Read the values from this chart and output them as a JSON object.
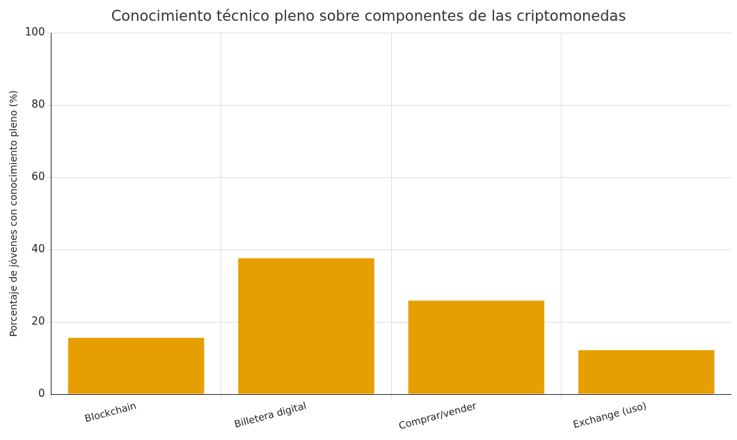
{
  "chart_data": {
    "type": "bar",
    "title": "Conocimiento técnico pleno sobre componentes de las criptomonedas",
    "ylabel": "Porcentaje de jóvenes con conocimiento pleno (%)",
    "categories": [
      "Blockchain",
      "Billetera digital",
      "Comprar/vender",
      "Exchange (uso)"
    ],
    "values": [
      15.6,
      37.6,
      25.9,
      12.2
    ],
    "color": "#e69f00",
    "ylim": [
      0,
      100
    ],
    "yticks": [
      0,
      20,
      40,
      60,
      80,
      100
    ],
    "grid": true
  }
}
